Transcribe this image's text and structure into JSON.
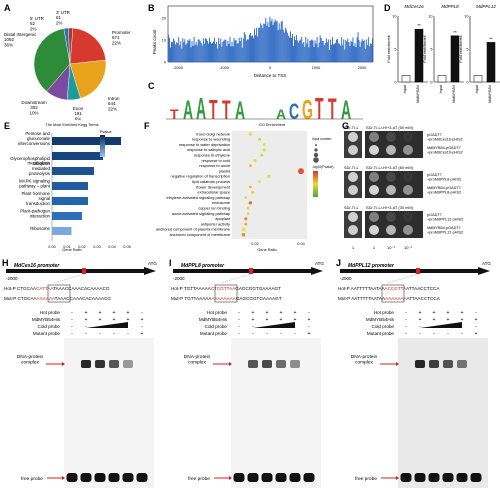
{
  "panels": {
    "A": {
      "letter": "A",
      "slices": [
        {
          "label": "5' UTR",
          "count": "52",
          "pct": "2%",
          "color": "#2b6fb5",
          "frac": 0.02
        },
        {
          "label": "3' UTR",
          "count": "61",
          "pct": "2%",
          "color": "#a43a2f",
          "frac": 0.02
        },
        {
          "label": "Promoter",
          "count": "671",
          "pct": "22%",
          "color": "#d6392e",
          "frac": 0.22
        },
        {
          "label": "Intron",
          "count": "644",
          "pct": "22%",
          "color": "#e8a21b",
          "frac": 0.22
        },
        {
          "label": "Exon",
          "count": "191",
          "pct": "6%",
          "color": "#1f9c9a",
          "frac": 0.06
        },
        {
          "label": "Downstream",
          "count": "302",
          "pct": "10%",
          "color": "#7c4aa0",
          "frac": 0.1
        },
        {
          "label": "Distal Intergenic",
          "count": "1092",
          "pct": "36%",
          "color": "#2e8b3a",
          "frac": 0.36
        }
      ]
    },
    "B": {
      "letter": "B",
      "ylabel": "Peaks count",
      "xlabel": "Distance to TSS",
      "xticks": [
        "-2000",
        "-1000",
        "0",
        "1000",
        "2000"
      ],
      "yticks": [
        "0",
        "10",
        "20"
      ]
    },
    "C": {
      "letter": "C",
      "motif1": "TAATTA",
      "motif2": "ACGTTA"
    },
    "D": {
      "letter": "D",
      "charts": [
        {
          "title": "MdCes16",
          "ylabel": "Fold enrichment",
          "bars": [
            "Input",
            "MdMYB54"
          ],
          "values": [
            1,
            8
          ],
          "sig": "**",
          "yticks": [
            "0",
            "5",
            "10"
          ]
        },
        {
          "title": "MdPPL8",
          "ylabel": "Fold enrichment",
          "bars": [
            "Input",
            "MdMYB54"
          ],
          "values": [
            1,
            7
          ],
          "sig": "**",
          "yticks": [
            "0",
            "5",
            "10"
          ]
        },
        {
          "title": "MdPPL12",
          "ylabel": "Fold enrichment",
          "bars": [
            "Input",
            "MdMYB54"
          ],
          "values": [
            1,
            6
          ],
          "sig": "**",
          "yticks": [
            "0",
            "5",
            "10"
          ]
        }
      ]
    },
    "E": {
      "letter": "E",
      "title": "The Most Enriched Kegg Terms",
      "xlabel": "Gene Ratio",
      "legend_title": "Pvalue",
      "terms": [
        "Pentose and glucuronate interconversions",
        "Glycerophospholipid metabolism",
        "Ubiquitin mediated proteolysis",
        "MAPK signaling pathway – plant",
        "Plant hormone signal transduction",
        "Plant-pathogen interaction",
        "Ribosome"
      ],
      "xticks": [
        "0.00",
        "0.01",
        "0.02",
        "0.03",
        "0.04",
        "0.05"
      ]
    },
    "F": {
      "letter": "F",
      "title": "GO Enrichment",
      "xlabel": "Gene Ratio",
      "terms": [
        "trans-Golgi network",
        "response to wounding",
        "response to water deprivation",
        "response to salicylic acid",
        "response to ethylene",
        "response to cold",
        "response to auxin",
        "plastid",
        "negative regulation of transcription",
        "lipid catabolic process",
        "flower development",
        "extracellular space",
        "ethylene-activated signaling pathway",
        "endosome",
        "copper ion binding",
        "auxin-activated signaling pathway",
        "apoplast",
        "antiporter activity",
        "anchored component of plasma membrane",
        "anchored component of membrane"
      ],
      "legend_size": "Input number",
      "legend_color": "-log10(Pvalue)",
      "xticks": [
        "0.02",
        "0.04"
      ]
    },
    "G": {
      "letter": "G",
      "col_sdtl": "SD/-T/-L",
      "rows": [
        {
          "header": "SD/-T/-L/-H/+3-AT (50 mM)",
          "labels": [
            "pGADT7 +proMdCes16-pHIS2",
            "MdMYB54-pGADT7 +proMdCes16-pHIS2"
          ]
        },
        {
          "header": "SD/-T/-L/-H/+3-AT (80 mM)",
          "labels": [
            "pGADT7 +proMdPPL8-pHIS2",
            "MdMYB54-pGADT7 +proMdPPL8-pHIS2"
          ]
        },
        {
          "header": "SD/-T/-L/-H/+3-AT (30 mM)",
          "labels": [
            "pGADT7 +proMdPPL12-pHIS2",
            "MdMYB54-pGADT7 +proMdPPL12-pHIS2"
          ]
        }
      ],
      "dilutions": [
        "1",
        "1",
        "10⁻¹",
        "10⁻²"
      ]
    },
    "emsa": [
      {
        "letter": "H",
        "promoter": "MdCes16 promoter",
        "start": "-2000",
        "end": "ATG",
        "hot": "Hot-P  CTGCAA",
        "hot_box": "CATTAA",
        "hot_tail": "TAAACCAAACACAAAACG",
        "mut": "Mut-P  CTGCAA",
        "mut_box": "AAAAAA",
        "mut_tail": "TAAACCAAACACAAAACG"
      },
      {
        "letter": "I",
        "promoter": "MdPPL8 promoter",
        "start": "-2000",
        "end": "ATG",
        "hot": "Hot-P  TGTTAAAAA",
        "hot_box": "CTCGTTAA",
        "hot_tail": "GAGCGGTGAAAAGT",
        "mut": "Mut-P  TGTTAAAAA",
        "mut_box": "AAAAAAAA",
        "mut_tail": "GAGCGGTGAAAAGT"
      },
      {
        "letter": "J",
        "promoter": "MdPPL12 promoter",
        "start": "-2000",
        "end": "ATG",
        "hot": "Hot-P  AATTTTTAATAA",
        "hot_box": "ACCGTTA",
        "hot_tail": "ATTAACCTCCA",
        "mut": "Mut-P  AATTTTTAATAA",
        "mut_box": "AAAAAAA",
        "mut_tail": "ATTAACCTCCA"
      }
    ],
    "emsa_rows": [
      "Hot probe",
      "MdMYB54His",
      "Cold probe",
      "Mutant probe"
    ],
    "emsa_signs": [
      [
        "-",
        "+",
        "+",
        "+",
        "+",
        "-"
      ],
      [
        "-",
        "+",
        "+",
        "+",
        "+",
        "+"
      ],
      [
        "-",
        "-",
        "",
        "",
        "",
        "-"
      ],
      [
        "-",
        "-",
        "-",
        "-",
        "-",
        "+"
      ]
    ],
    "complex_label": "DNA-protein complex",
    "free_label": "free probe"
  }
}
